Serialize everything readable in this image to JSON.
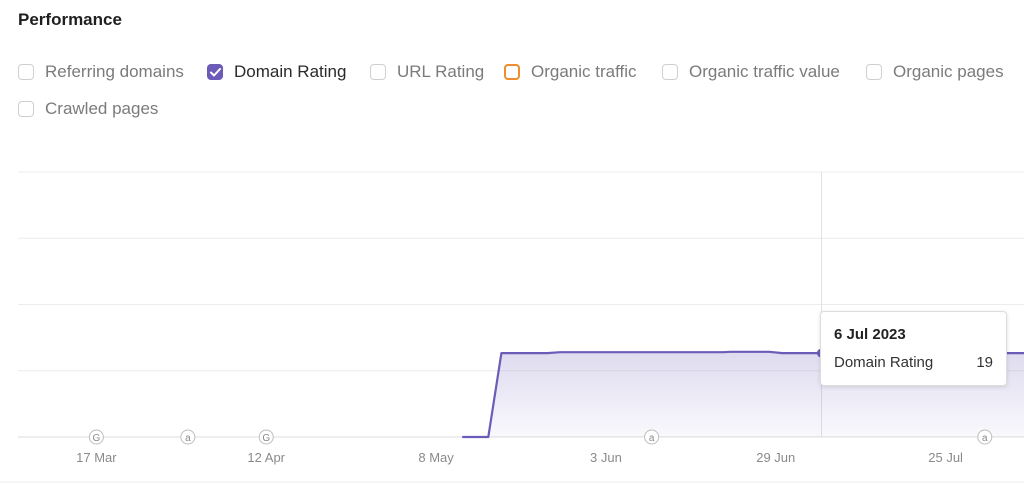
{
  "section_title": "Performance",
  "metrics": [
    {
      "label": "Referring domains",
      "checked": false,
      "color": "#cfcfcf"
    },
    {
      "label": "Domain Rating",
      "checked": true,
      "color": "#6c5bb8"
    },
    {
      "label": "URL Rating",
      "checked": false,
      "color": "#cfcfcf"
    },
    {
      "label": "Organic traffic",
      "checked": false,
      "color": "#f08c2d"
    },
    {
      "label": "Organic traffic value",
      "checked": false,
      "color": "#cfcfcf"
    },
    {
      "label": "Organic pages",
      "checked": false,
      "color": "#cfcfcf"
    },
    {
      "label": "Crawled pages",
      "checked": false,
      "color": "#cfcfcf"
    }
  ],
  "chart_data": {
    "type": "area",
    "series": [
      {
        "name": "Domain Rating",
        "color": "#6c5bb8",
        "x": [
          "2023-05-12",
          "2023-05-16",
          "2023-05-18",
          "2023-05-25",
          "2023-05-27",
          "2023-06-21",
          "2023-06-22",
          "2023-06-28",
          "2023-06-30",
          "2023-07-06",
          "2023-08-07"
        ],
        "y": [
          0,
          0,
          19,
          19,
          19.2,
          19.2,
          19.3,
          19.3,
          19,
          19,
          19
        ]
      }
    ],
    "x_ticks": [
      "17 Mar",
      "12 Apr",
      "8 May",
      "3 Jun",
      "29 Jun",
      "25 Jul"
    ],
    "xlim": [
      "2023-03-05",
      "2023-08-06"
    ],
    "ylim": [
      0,
      60
    ],
    "grid": true,
    "annotations": [
      {
        "date": "2023-03-17",
        "label": "G"
      },
      {
        "date": "2023-03-31",
        "label": "a"
      },
      {
        "date": "2023-04-12",
        "label": "G"
      },
      {
        "date": "2023-06-10",
        "label": "a"
      },
      {
        "date": "2023-07-31",
        "label": "a"
      }
    ],
    "tooltip": {
      "date": "6 Jul 2023",
      "series_name": "Domain Rating",
      "value": 19,
      "x": "2023-07-06"
    }
  }
}
